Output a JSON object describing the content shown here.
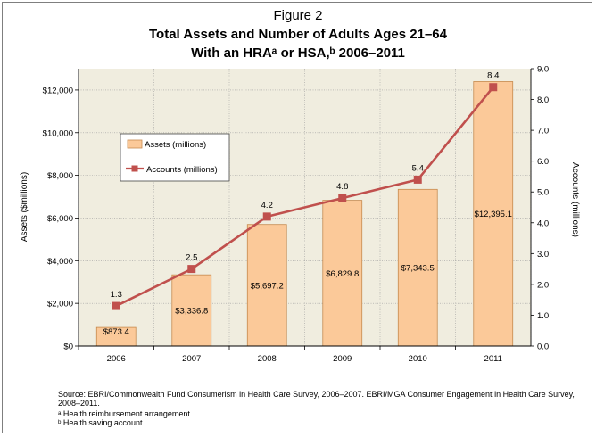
{
  "figure_label": "Figure 2",
  "title_line1": "Total Assets and Number of Adults Ages 21–64",
  "title_line2": "With an HRAᵃ or HSA,ᵇ 2006–2011",
  "source_note": "Source: EBRI/Commonwealth Fund Consumerism in Health Care Survey, 2006–2007. EBRI/MGA Consumer Engagement in Health Care Survey, 2008–2011.",
  "footnote_a": "ᵃ Health reimbursement arrangement.",
  "footnote_b": "ᵇ Health saving account.",
  "colors": {
    "bar_fill": "#fbc999",
    "bar_stroke": "#c68a4f",
    "line": "#c0504d",
    "plot_bg": "#f0eddf",
    "grid": "#a0a0a0"
  },
  "chart_data": {
    "type": "bar",
    "categories": [
      "2006",
      "2007",
      "2008",
      "2009",
      "2010",
      "2011"
    ],
    "series": [
      {
        "name": "Assets (millions)",
        "type": "bar",
        "axis": "left",
        "values": [
          873.4,
          3336.8,
          5697.2,
          6829.8,
          7343.5,
          12395.1
        ],
        "labels": [
          "$873.4",
          "$3,336.8",
          "$5,697.2",
          "$6,829.8",
          "$7,343.5",
          "$12,395.1"
        ]
      },
      {
        "name": "Accounts (millions)",
        "type": "line",
        "axis": "right",
        "values": [
          1.3,
          2.5,
          4.2,
          4.8,
          5.4,
          8.4
        ],
        "labels": [
          "1.3",
          "2.5",
          "4.2",
          "4.8",
          "5.4",
          "8.4"
        ]
      }
    ],
    "ylabel": "Assets ($millions)",
    "y2label": "Accounts (millions)",
    "ylim": [
      0,
      13000
    ],
    "y2lim": [
      0,
      9
    ],
    "yticks": [
      0,
      2000,
      4000,
      6000,
      8000,
      10000,
      12000
    ],
    "ytick_labels": [
      "$0",
      "$2,000",
      "$4,000",
      "$6,000",
      "$8,000",
      "$10,000",
      "$12,000"
    ],
    "y2ticks": [
      0,
      1,
      2,
      3,
      4,
      5,
      6,
      7,
      8,
      9
    ],
    "y2tick_labels": [
      "0.0",
      "1.0",
      "2.0",
      "3.0",
      "4.0",
      "5.0",
      "6.0",
      "7.0",
      "8.0",
      "9.0"
    ],
    "grid": true,
    "legend_position": "upper-left"
  }
}
